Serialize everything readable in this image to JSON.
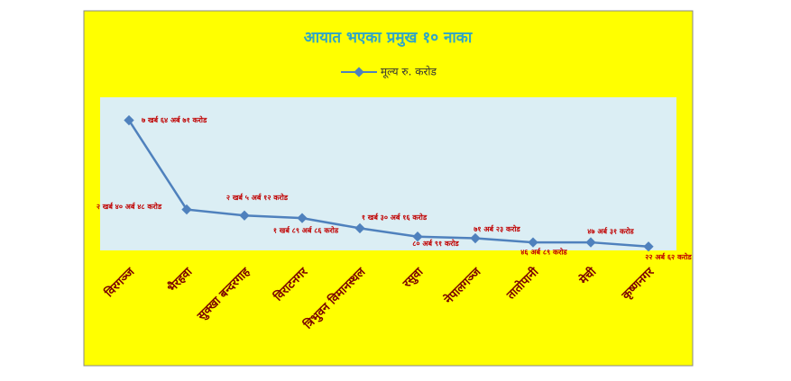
{
  "chart_data": {
    "type": "line",
    "title": "आयात भएका प्रमुख १० नाका",
    "categories": [
      "विरगञ्ज",
      "भैरहवा",
      "सुक्खा बन्दरगाह",
      "विराटनगर",
      "त्रिभुवन विमानस्थल",
      "रसुवा",
      "नेपालगञ्ज",
      "तातोपानी",
      "मेची",
      "कृष्णनगर"
    ],
    "series": [
      {
        "name": "मूल्य रु. करोड",
        "color": "#4f81bd",
        "values": [
          76471,
          24048,
          20512,
          18986,
          13016,
          8091,
          7123,
          4689,
          4731,
          2262
        ],
        "value_labels": [
          "७ खर्ब ६४ अर्ब ७१ करोड",
          "२ खर्ब ४० अर्ब ४८ करोड",
          "२ खर्ब ५ अर्ब १२ करोड",
          "१ खर्ब ८९ अर्ब ८६ करोड",
          "१ खर्ब ३० अर्ब १६ करोड",
          "८० अर्ब ९१ करोड",
          "७१ अर्ब २३ करोड",
          "४६ अर्ब ८९ करोड",
          "४७ अर्ब ३१ करोड",
          "२२ अर्ब ६२ करोड"
        ]
      }
    ],
    "ylim": [
      0,
      90000
    ],
    "legend": "top"
  }
}
